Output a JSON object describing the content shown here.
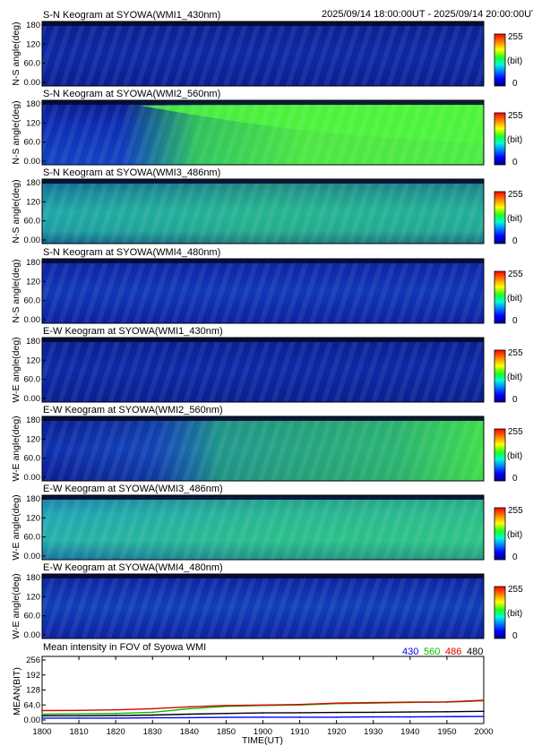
{
  "header_range": "2025/09/14 18:00:00UT - 2025/09/14 20:00:00UT",
  "keograms": [
    {
      "title": "S-N Keogram at SYOWA(WMI1_430nm)",
      "ylabel": "N-S angle(deg)",
      "style": "dim"
    },
    {
      "title": "S-N Keogram at SYOWA(WMI2_560nm)",
      "ylabel": "N-S angle(deg)",
      "style": "sn560"
    },
    {
      "title": "S-N Keogram at SYOWA(WMI3_486nm)",
      "ylabel": "N-S angle(deg)",
      "style": "sn486"
    },
    {
      "title": "S-N Keogram at SYOWA(WMI4_480nm)",
      "ylabel": "N-S angle(deg)",
      "style": "sn480"
    },
    {
      "title": "E-W Keogram at SYOWA(WMI1_430nm)",
      "ylabel": "W-E angle(deg)",
      "style": "dim"
    },
    {
      "title": "E-W Keogram at SYOWA(WMI2_560nm)",
      "ylabel": "W-E angle(deg)",
      "style": "ew560"
    },
    {
      "title": "E-W Keogram at SYOWA(WMI3_486nm)",
      "ylabel": "W-E angle(deg)",
      "style": "ew486"
    },
    {
      "title": "E-W Keogram at SYOWA(WMI4_480nm)",
      "ylabel": "W-E angle(deg)",
      "style": "ew480"
    }
  ],
  "keogram_yticks": [
    "180",
    "120",
    "60.0",
    "0.00"
  ],
  "colorbar": {
    "max_label": "255",
    "unit_label": "(bit)",
    "min_label": "0",
    "range": [
      0,
      255
    ]
  },
  "colors": {
    "series_430": "#0000ff",
    "series_560": "#00c000",
    "series_486": "#e00000",
    "series_480": "#000000"
  },
  "chart_data": {
    "type": "line",
    "title": "Mean intensity in FOV of Syowa WMI",
    "xlabel": "TIME(UT)",
    "ylabel": "MEAN(BIT)",
    "xlim": [
      1800,
      2000
    ],
    "ylim": [
      0,
      256
    ],
    "xticks": [
      "1800",
      "1810",
      "1820",
      "1830",
      "1840",
      "1850",
      "1900",
      "1910",
      "1920",
      "1930",
      "1940",
      "1950",
      "2000"
    ],
    "yticks": [
      "256",
      "192",
      "128",
      "64.0",
      "0.00"
    ],
    "legend_placement": "top-right",
    "x": [
      "1800",
      "1810",
      "1820",
      "1830",
      "1840",
      "1850",
      "1900",
      "1910",
      "1920",
      "1930",
      "1940",
      "1950",
      "2000"
    ],
    "series": [
      {
        "name": "430",
        "color": "#0000ff",
        "values": [
          8,
          8,
          8,
          9,
          10,
          11,
          12,
          12,
          12,
          13,
          13,
          14,
          15
        ]
      },
      {
        "name": "560",
        "color": "#00c000",
        "values": [
          25,
          26,
          28,
          33,
          48,
          58,
          62,
          64,
          70,
          72,
          75,
          76,
          82
        ]
      },
      {
        "name": "486",
        "color": "#e00000",
        "values": [
          40,
          41,
          43,
          48,
          56,
          62,
          64,
          66,
          72,
          74,
          76,
          77,
          84
        ]
      },
      {
        "name": "480",
        "color": "#000000",
        "values": [
          18,
          18,
          19,
          21,
          25,
          28,
          30,
          31,
          32,
          33,
          34,
          35,
          37
        ]
      }
    ]
  }
}
